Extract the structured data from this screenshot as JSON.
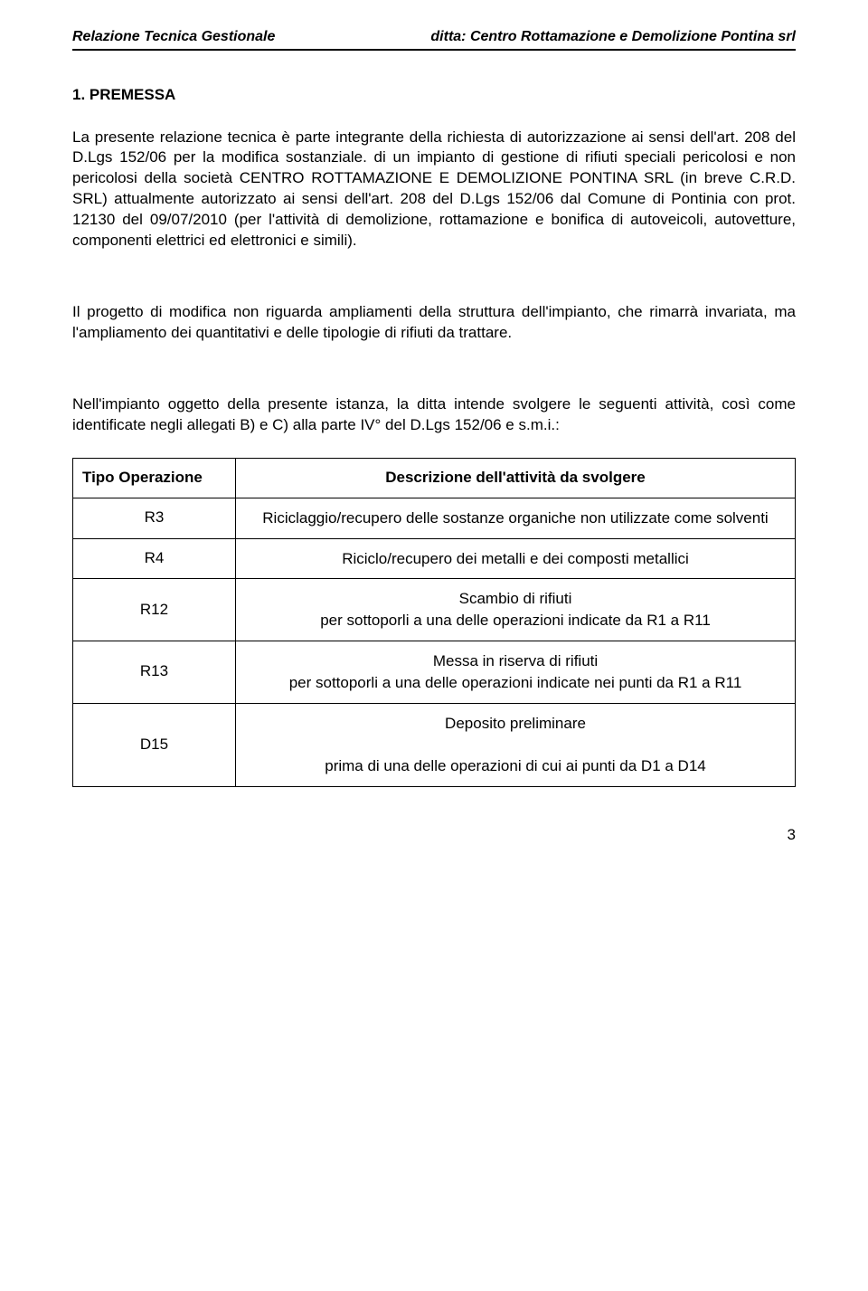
{
  "header": {
    "left": "Relazione Tecnica Gestionale",
    "right": "ditta: Centro Rottamazione e Demolizione Pontina srl"
  },
  "section_title": "1. PREMESSA",
  "para1": "La presente relazione tecnica è parte integrante della richiesta di autorizzazione ai sensi dell'art. 208 del D.Lgs 152/06 per la modifica sostanziale. di un impianto di gestione di rifiuti speciali pericolosi e non pericolosi della società CENTRO ROTTAMAZIONE E DEMOLIZIONE PONTINA SRL (in breve C.R.D. SRL) attualmente autorizzato ai sensi dell'art. 208 del D.Lgs 152/06 dal Comune di Pontinia con prot. 12130 del 09/07/2010 (per l'attività di demolizione, rottamazione e bonifica di autoveicoli, autovetture, componenti elettrici ed elettronici e simili).",
  "para2": "Il progetto di modifica non riguarda ampliamenti della struttura dell'impianto, che rimarrà invariata, ma l'ampliamento dei quantitativi e delle tipologie di rifiuti da trattare.",
  "para3": "Nell'impianto oggetto della presente istanza, la ditta intende svolgere le seguenti attività, così come identificate negli allegati B) e C) alla parte IV° del D.Lgs 152/06 e s.m.i.:",
  "table": {
    "col_tipo": "Tipo Operazione",
    "col_desc": "Descrizione dell'attività da svolgere",
    "rows": [
      {
        "tipo": "R3",
        "desc": "Riciclaggio/recupero delle sostanze organiche non utilizzate come solventi"
      },
      {
        "tipo": "R4",
        "desc": "Riciclo/recupero dei metalli e dei composti metallici"
      },
      {
        "tipo": "R12",
        "desc": "Scambio di rifiuti\nper sottoporli a una delle operazioni indicate da R1 a R11"
      },
      {
        "tipo": "R13",
        "desc": "Messa in riserva di rifiuti\nper sottoporli a una delle operazioni indicate nei punti da R1 a R11"
      },
      {
        "tipo": "D15",
        "desc": "Deposito preliminare\n\nprima di una delle operazioni di cui ai punti da D1 a D14"
      }
    ]
  },
  "page_number": "3"
}
